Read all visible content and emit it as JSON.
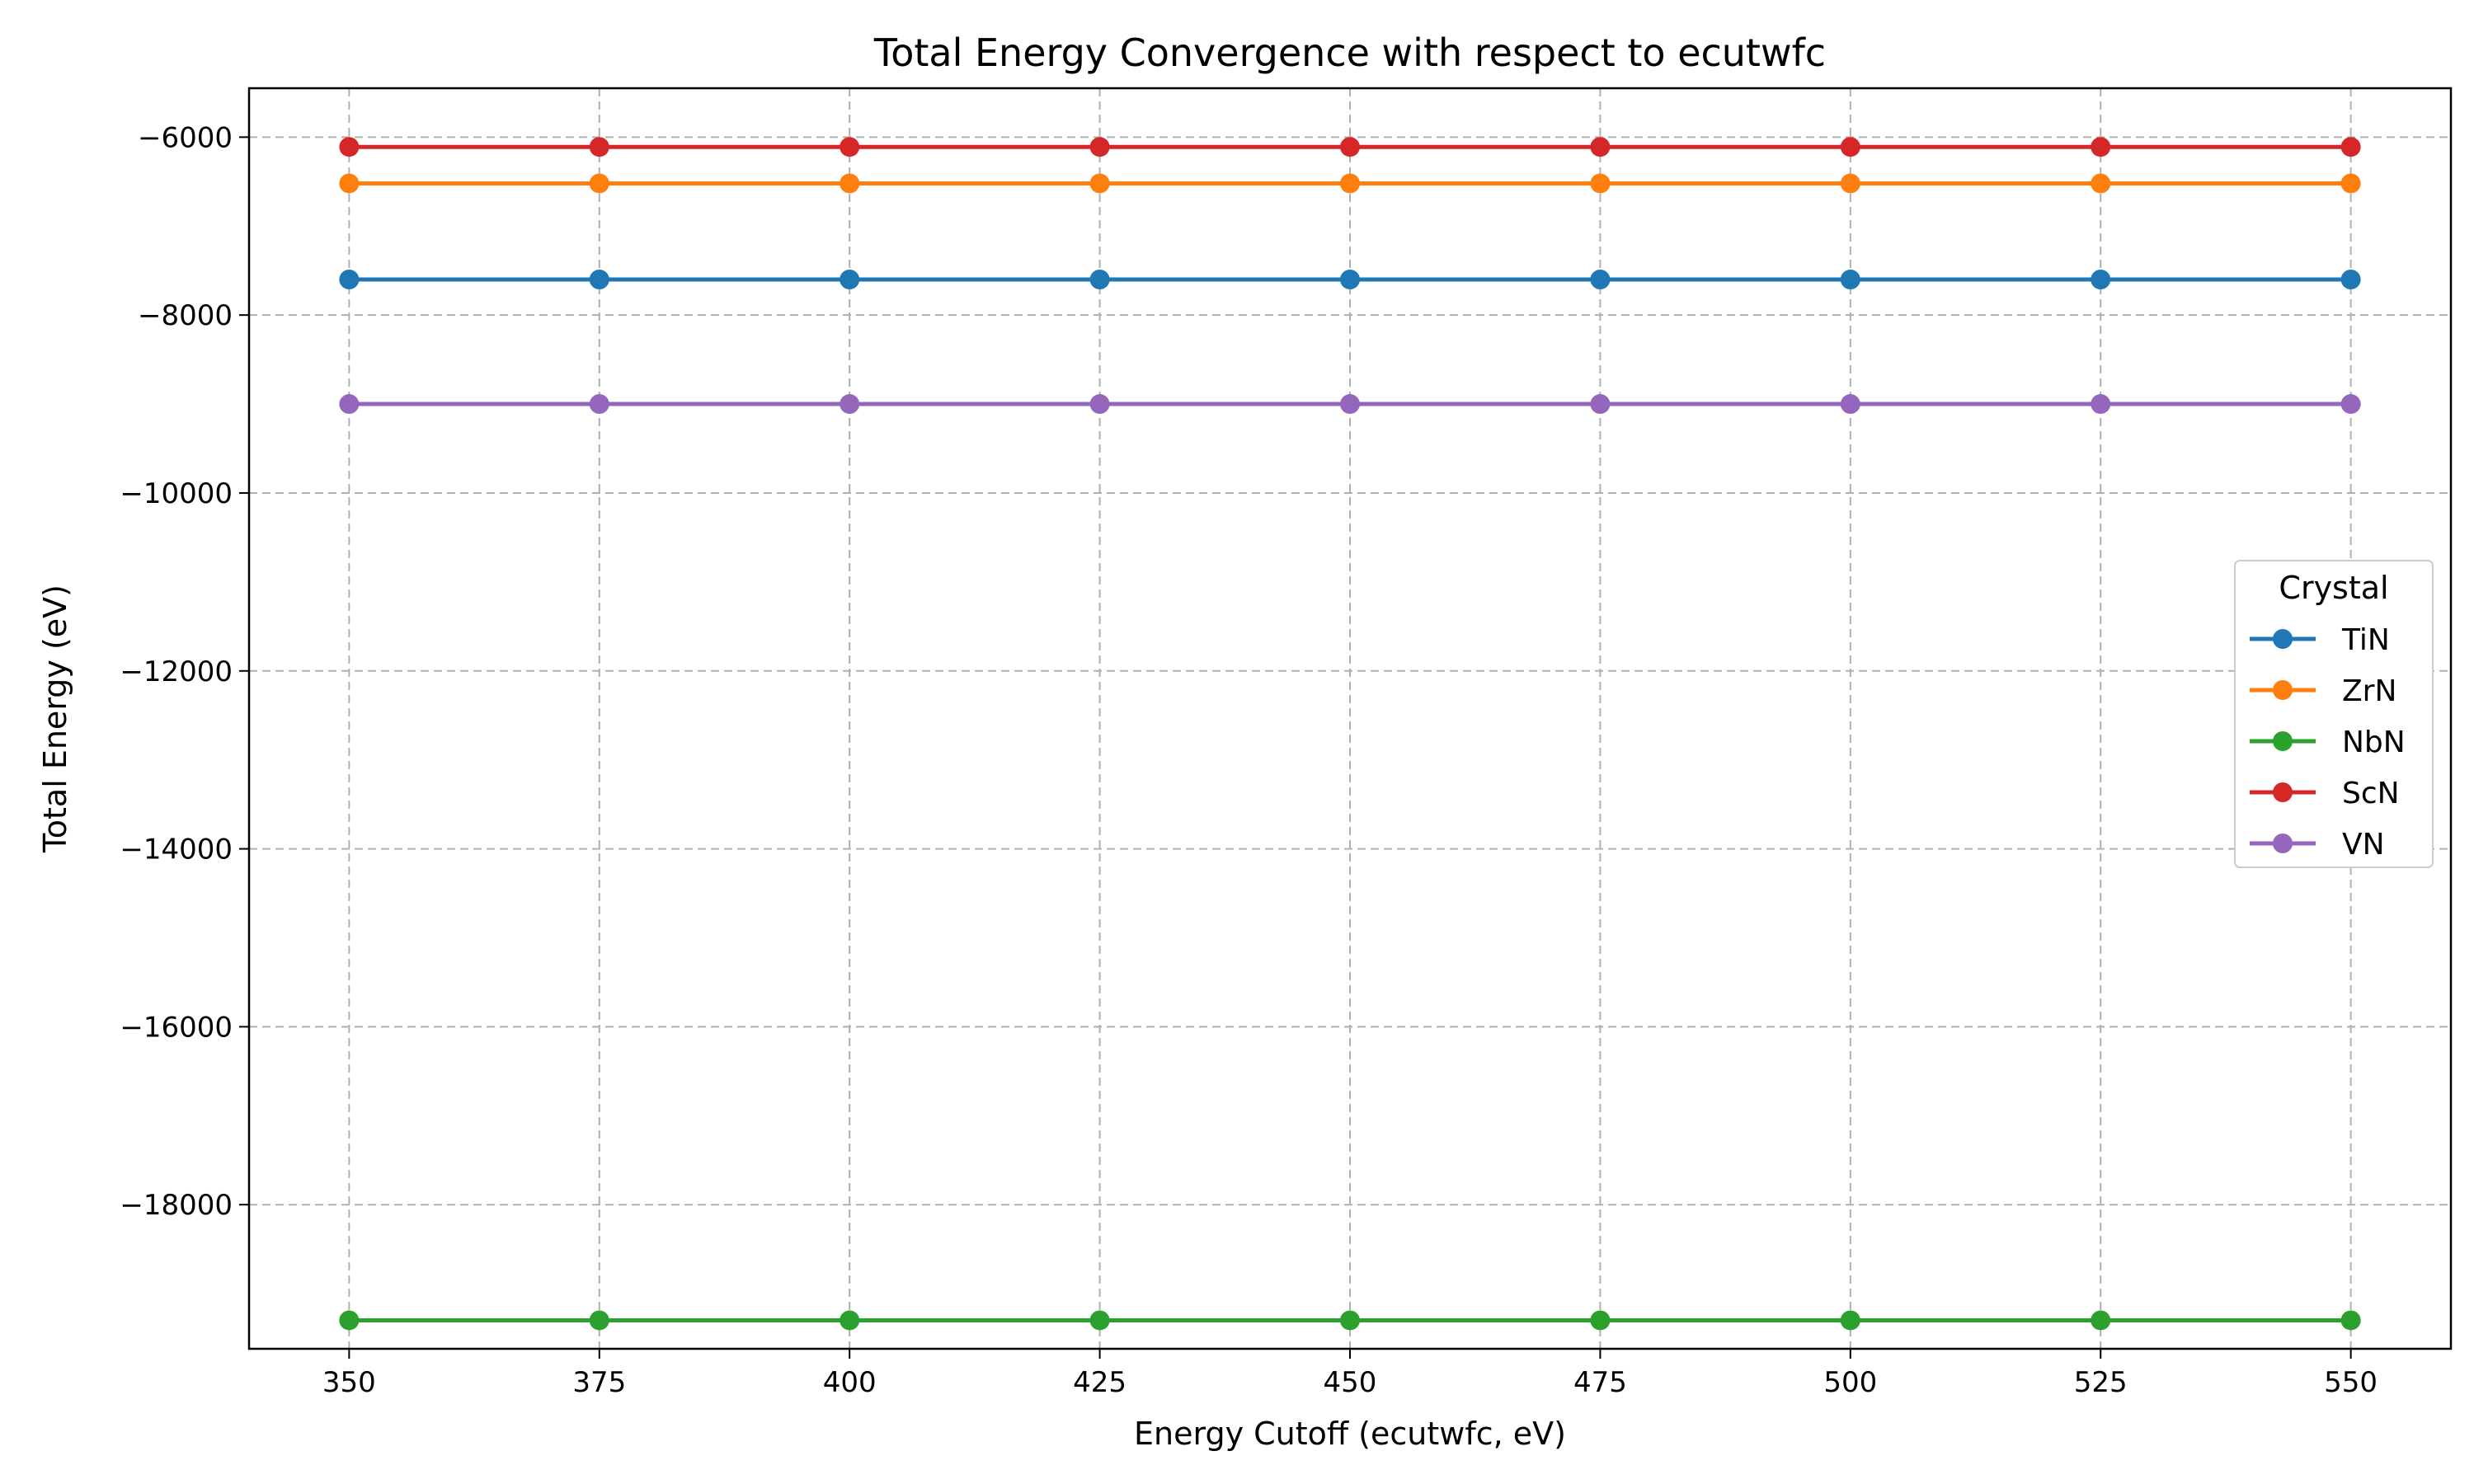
{
  "chart_data": {
    "type": "line",
    "title": "Total Energy Convergence with respect to ecutwfc",
    "xlabel": "Energy Cutoff (ecutwfc, eV)",
    "ylabel": "Total Energy (eV)",
    "x": [
      350,
      375,
      400,
      425,
      450,
      475,
      500,
      525,
      550
    ],
    "xticks": [
      350,
      375,
      400,
      425,
      450,
      475,
      500,
      525,
      550
    ],
    "xlim": [
      340,
      560
    ],
    "yticks": [
      -18000,
      -16000,
      -14000,
      -12000,
      -10000,
      -8000,
      -6000
    ],
    "ytick_labels": [
      "−18000",
      "−16000",
      "−14000",
      "−12000",
      "−10000",
      "−8000",
      "−6000"
    ],
    "ylim": [
      -19620,
      -5450
    ],
    "grid": true,
    "legend": {
      "title": "Crystal",
      "placement": "center-right"
    },
    "series": [
      {
        "name": "TiN",
        "color": "#1f77b4",
        "values": [
          -7600,
          -7600,
          -7600,
          -7600,
          -7600,
          -7600,
          -7600,
          -7600,
          -7600
        ]
      },
      {
        "name": "ZrN",
        "color": "#ff7f0e",
        "values": [
          -6520,
          -6520,
          -6520,
          -6520,
          -6520,
          -6520,
          -6520,
          -6520,
          -6520
        ]
      },
      {
        "name": "NbN",
        "color": "#2ca02c",
        "values": [
          -19300,
          -19300,
          -19300,
          -19300,
          -19300,
          -19300,
          -19300,
          -19300,
          -19300
        ]
      },
      {
        "name": "ScN",
        "color": "#d62728",
        "values": [
          -6110,
          -6110,
          -6110,
          -6110,
          -6110,
          -6110,
          -6110,
          -6110,
          -6110
        ]
      },
      {
        "name": "VN",
        "color": "#9467bd",
        "values": [
          -9000,
          -9000,
          -9000,
          -9000,
          -9000,
          -9000,
          -9000,
          -9000,
          -9000
        ]
      }
    ]
  }
}
